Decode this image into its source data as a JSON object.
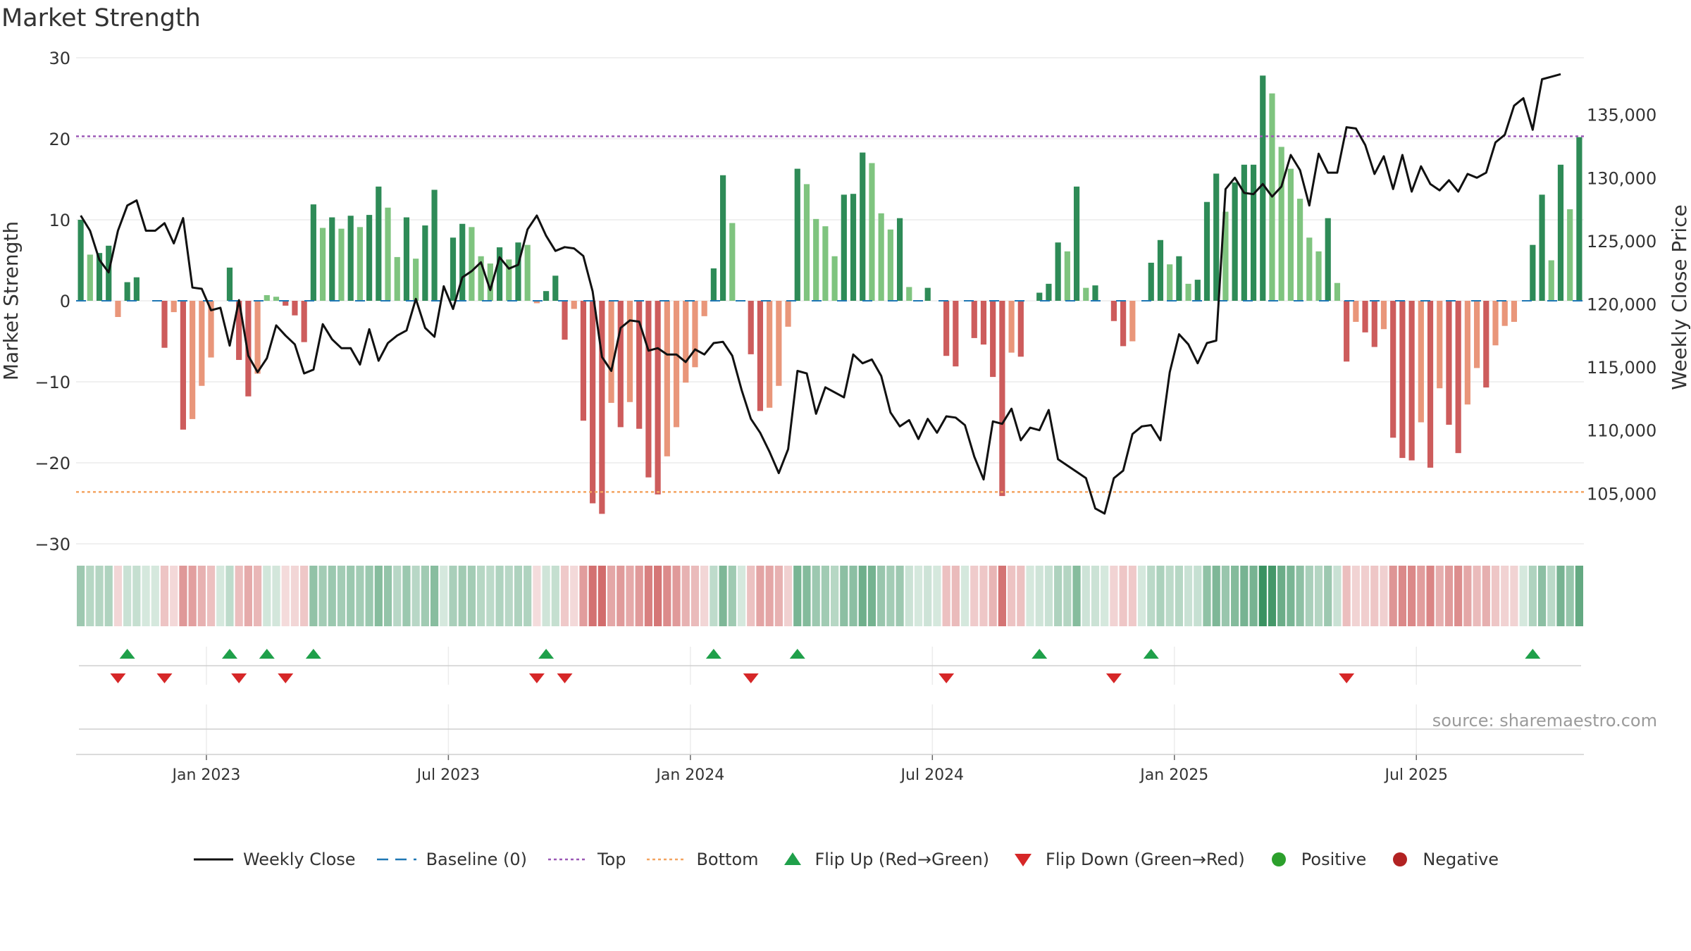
{
  "title": "Market Strength",
  "source": "source: sharemaestro.com",
  "colors": {
    "pos_strong": "#2e8b57",
    "pos_light": "#7fc47f",
    "neg_strong": "#cd5c5c",
    "neg_light": "#e9967a",
    "top_line": "#9b59b6",
    "bottom_line": "#f4a460",
    "baseline": "#1f77b4",
    "flip_up": "#1fa04a",
    "flip_down": "#d62728",
    "positive": "#2ca02c",
    "negative": "#b22222",
    "price": "#111111"
  },
  "legend": {
    "weekly_close": "Weekly Close",
    "baseline": "Baseline (0)",
    "top": "Top",
    "bottom": "Bottom",
    "flip_up": "Flip Up (Red→Green)",
    "flip_down": "Flip Down (Green→Red)",
    "positive": "Positive",
    "negative": "Negative"
  },
  "chart_data": {
    "type": "bar",
    "title": "Market Strength",
    "ylabel_left": "Market Strength",
    "ylabel_right": "Weekly Close Price",
    "ylim_left": [
      -30,
      30
    ],
    "ylim_right": [
      101000,
      139500
    ],
    "yticks_left": [
      -30,
      -20,
      -10,
      0,
      10,
      20,
      30
    ],
    "yticks_left_labels": [
      "−30",
      "−20",
      "−10",
      "0",
      "10",
      "20",
      "30"
    ],
    "yticks_right": [
      105000,
      110000,
      115000,
      120000,
      125000,
      130000,
      135000
    ],
    "yticks_right_labels": [
      "105,000",
      "110,000",
      "115,000",
      "120,000",
      "125,000",
      "130,000",
      "135,000"
    ],
    "xticks": [
      "Jan 2023",
      "Jul 2023",
      "Jan 2024",
      "Jul 2024",
      "Jan 2025",
      "Jul 2025"
    ],
    "xtick_week_index": [
      14,
      40,
      66,
      92,
      118,
      144
    ],
    "top_level": 20.3,
    "bottom_level": -23.6,
    "grid": true,
    "legend_position": "bottom",
    "strength": [
      10.0,
      5.7,
      5.9,
      6.8,
      -2.0,
      2.3,
      2.9,
      0,
      0,
      -5.8,
      -1.4,
      -15.9,
      -14.6,
      -10.5,
      -7.0,
      0,
      4.1,
      -7.3,
      -11.8,
      -9.0,
      0.7,
      0.5,
      -0.6,
      -1.8,
      -5.1,
      11.9,
      9.0,
      10.3,
      8.9,
      10.5,
      9.1,
      10.6,
      14.1,
      11.5,
      5.4,
      10.3,
      5.2,
      9.3,
      13.7,
      0,
      7.8,
      9.5,
      9.1,
      5.5,
      4.6,
      6.6,
      5.1,
      7.2,
      6.9,
      -0.3,
      1.2,
      3.1,
      -4.8,
      -1.0,
      -14.8,
      -25.0,
      -26.3,
      -12.6,
      -15.6,
      -12.5,
      -15.8,
      -21.8,
      -23.9,
      -19.2,
      -15.6,
      -10.1,
      -8.2,
      -1.9,
      4.0,
      15.5,
      9.6,
      0,
      -6.6,
      -13.6,
      -13.2,
      -10.5,
      -3.2,
      16.3,
      14.4,
      10.1,
      9.2,
      5.5,
      13.1,
      13.2,
      18.3,
      17.0,
      10.8,
      8.8,
      10.2,
      1.7,
      0,
      1.6,
      0,
      -6.8,
      -8.1,
      0,
      -4.6,
      -5.4,
      -9.4,
      -24.1,
      -6.4,
      -6.9,
      0,
      1.0,
      2.1,
      7.2,
      6.1,
      14.1,
      1.6,
      1.9,
      0,
      -2.5,
      -5.6,
      -5.0,
      0,
      4.7,
      7.5,
      4.5,
      5.5,
      2.1,
      2.6,
      12.2,
      15.7,
      11.0,
      14.6,
      16.8,
      16.8,
      27.8,
      25.6,
      19.0,
      16.3,
      12.6,
      7.8,
      6.1,
      10.2,
      2.2,
      -7.5,
      -2.6,
      -3.9,
      -5.7,
      -3.5,
      -16.9,
      -19.4,
      -19.7,
      -15.0,
      -20.6,
      -10.8,
      -15.3,
      -18.8,
      -12.8,
      -8.3,
      -10.7,
      -5.5,
      -3.1,
      -2.6,
      0,
      6.9,
      13.1,
      5.0,
      16.8,
      11.3,
      20.2
    ],
    "weekly_close": [
      127000,
      125800,
      123500,
      122500,
      125800,
      127800,
      128200,
      125800,
      125800,
      126400,
      124800,
      126800,
      121300,
      121200,
      119500,
      119700,
      116700,
      120300,
      115900,
      114600,
      115700,
      118300,
      117500,
      116800,
      114500,
      114800,
      118400,
      117200,
      116500,
      116500,
      115200,
      118000,
      115500,
      116900,
      117500,
      117900,
      120400,
      118100,
      117400,
      121400,
      119600,
      122100,
      122600,
      123300,
      121100,
      123700,
      122800,
      123100,
      125900,
      127000,
      125400,
      124200,
      124500,
      124400,
      123800,
      121000,
      115800,
      114700,
      118100,
      118700,
      118600,
      116300,
      116500,
      116000,
      116000,
      115400,
      116400,
      116000,
      116900,
      117000,
      115900,
      113200,
      110900,
      109800,
      108300,
      106600,
      108500,
      114700,
      114500,
      111300,
      113400,
      113000,
      112600,
      116000,
      115300,
      115600,
      114300,
      111400,
      110300,
      110800,
      109300,
      110900,
      109800,
      111100,
      111000,
      110400,
      107900,
      106100,
      110700,
      110500,
      111700,
      109200,
      110200,
      110000,
      111600,
      107700,
      107200,
      106700,
      106200,
      103800,
      103400,
      106200,
      106800,
      109700,
      110300,
      110400,
      109200,
      114600,
      117600,
      116800,
      115300,
      116900,
      117100,
      129100,
      130000,
      128800,
      128700,
      129500,
      128500,
      129300,
      131800,
      130600,
      127800,
      131900,
      130400,
      130400,
      134000,
      133900,
      132600,
      130300,
      131700,
      129100,
      131800,
      128900,
      130900,
      129500,
      129000,
      129800,
      128900,
      130300,
      130000,
      130400,
      132800,
      133400,
      135700,
      136300,
      133800,
      137800,
      138000,
      138200
    ]
  }
}
